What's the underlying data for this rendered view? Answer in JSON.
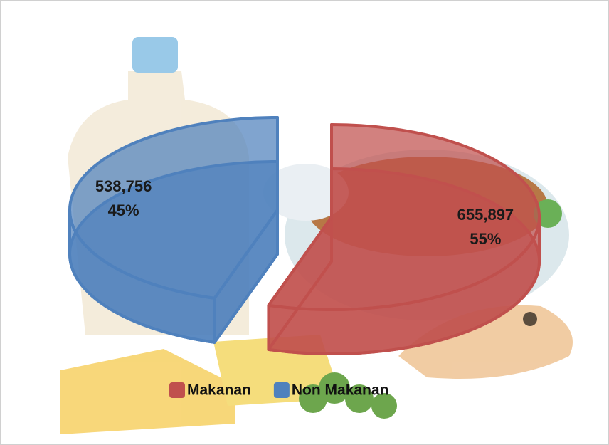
{
  "chart_data": {
    "type": "pie",
    "categories": [
      "Makanan",
      "Non Makanan"
    ],
    "values": [
      655897,
      538756
    ],
    "value_labels": [
      "655,897",
      "538,756"
    ],
    "percent_labels": [
      "55%",
      "45%"
    ],
    "colors": [
      "#c0504d",
      "#4f81bd"
    ],
    "legend": "bottom"
  }
}
